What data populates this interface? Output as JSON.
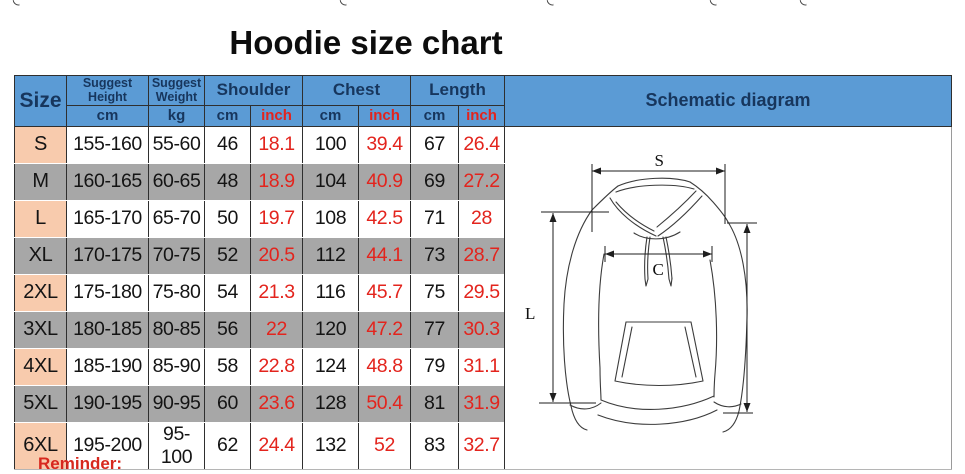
{
  "page": {
    "title": "Hoodie size chart",
    "bottom_note": "Reminder:"
  },
  "colors": {
    "header_blue": "#5B9BD5",
    "header_text_navy": "#17365D",
    "size_column_peach": "#F8CBAD",
    "stripe_gray": "#A7A7A7",
    "accent_red": "#E3241D"
  },
  "table": {
    "header": {
      "size": "Size",
      "suggest_height": "Suggest Height",
      "suggest_weight": "Suggest Weight",
      "shoulder": "Shoulder",
      "chest": "Chest",
      "length": "Length",
      "schematic": "Schematic diagram",
      "units": [
        "cm",
        "kg",
        "cm",
        "inch",
        "cm",
        "inch",
        "cm",
        "inch"
      ]
    },
    "rows": [
      {
        "size": "S",
        "suggest_height": "155-160",
        "suggest_weight": "55-60",
        "shoulder_cm": "46",
        "shoulder_inch": "18.1",
        "chest_cm": "100",
        "chest_inch": "39.4",
        "length_cm": "67",
        "length_inch": "26.4"
      },
      {
        "size": "M",
        "suggest_height": "160-165",
        "suggest_weight": "60-65",
        "shoulder_cm": "48",
        "shoulder_inch": "18.9",
        "chest_cm": "104",
        "chest_inch": "40.9",
        "length_cm": "69",
        "length_inch": "27.2"
      },
      {
        "size": "L",
        "suggest_height": "165-170",
        "suggest_weight": "65-70",
        "shoulder_cm": "50",
        "shoulder_inch": "19.7",
        "chest_cm": "108",
        "chest_inch": "42.5",
        "length_cm": "71",
        "length_inch": "28"
      },
      {
        "size": "XL",
        "suggest_height": "170-175",
        "suggest_weight": "70-75",
        "shoulder_cm": "52",
        "shoulder_inch": "20.5",
        "chest_cm": "112",
        "chest_inch": "44.1",
        "length_cm": "73",
        "length_inch": "28.7"
      },
      {
        "size": "2XL",
        "suggest_height": "175-180",
        "suggest_weight": "75-80",
        "shoulder_cm": "54",
        "shoulder_inch": "21.3",
        "chest_cm": "116",
        "chest_inch": "45.7",
        "length_cm": "75",
        "length_inch": "29.5"
      },
      {
        "size": "3XL",
        "suggest_height": "180-185",
        "suggest_weight": "80-85",
        "shoulder_cm": "56",
        "shoulder_inch": "22",
        "chest_cm": "120",
        "chest_inch": "47.2",
        "length_cm": "77",
        "length_inch": "30.3"
      },
      {
        "size": "4XL",
        "suggest_height": "185-190",
        "suggest_weight": "85-90",
        "shoulder_cm": "58",
        "shoulder_inch": "22.8",
        "chest_cm": "124",
        "chest_inch": "48.8",
        "length_cm": "79",
        "length_inch": "31.1"
      },
      {
        "size": "5XL",
        "suggest_height": "190-195",
        "suggest_weight": "90-95",
        "shoulder_cm": "60",
        "shoulder_inch": "23.6",
        "chest_cm": "128",
        "chest_inch": "50.4",
        "length_cm": "81",
        "length_inch": "31.9"
      },
      {
        "size": "6XL",
        "suggest_height": "195-200",
        "suggest_weight": "95-100",
        "shoulder_cm": "62",
        "shoulder_inch": "24.4",
        "chest_cm": "132",
        "chest_inch": "52",
        "length_cm": "83",
        "length_inch": "32.7"
      }
    ]
  },
  "diagram": {
    "labels": {
      "shoulder": "S",
      "chest": "C",
      "length": "L"
    }
  }
}
